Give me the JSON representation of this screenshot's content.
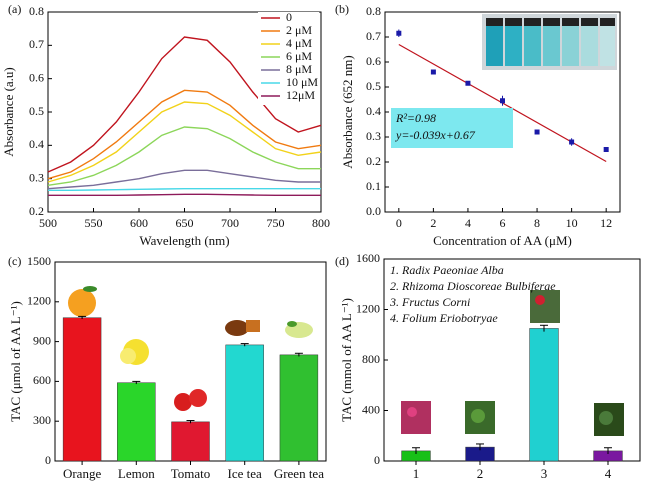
{
  "chart_data": [
    {
      "type": "line",
      "panel_label": "(a)",
      "x_label": "Wavelength (nm)",
      "y_label": "Absorbance (a.u)",
      "x": [
        500,
        525,
        550,
        575,
        600,
        625,
        650,
        675,
        700,
        725,
        750,
        775,
        800
      ],
      "series": [
        {
          "name": "0",
          "color": "#c0141e",
          "values": [
            0.32,
            0.35,
            0.4,
            0.47,
            0.56,
            0.66,
            0.725,
            0.715,
            0.65,
            0.56,
            0.48,
            0.44,
            0.46
          ]
        },
        {
          "name": "2 μM",
          "color": "#f07a10",
          "values": [
            0.3,
            0.32,
            0.36,
            0.41,
            0.47,
            0.53,
            0.565,
            0.56,
            0.52,
            0.46,
            0.41,
            0.39,
            0.4
          ]
        },
        {
          "name": "4 μM",
          "color": "#f2d21a",
          "values": [
            0.29,
            0.31,
            0.34,
            0.38,
            0.44,
            0.5,
            0.53,
            0.525,
            0.49,
            0.44,
            0.39,
            0.37,
            0.38
          ]
        },
        {
          "name": "6 μM",
          "color": "#8cd65a",
          "values": [
            0.28,
            0.29,
            0.31,
            0.34,
            0.38,
            0.43,
            0.455,
            0.45,
            0.42,
            0.38,
            0.35,
            0.33,
            0.33
          ]
        },
        {
          "name": "8 μM",
          "color": "#7a6e9a",
          "values": [
            0.27,
            0.275,
            0.28,
            0.29,
            0.3,
            0.315,
            0.325,
            0.325,
            0.315,
            0.305,
            0.295,
            0.29,
            0.29
          ]
        },
        {
          "name": "10 μM",
          "color": "#48d8e8",
          "values": [
            0.265,
            0.265,
            0.266,
            0.267,
            0.268,
            0.269,
            0.27,
            0.27,
            0.27,
            0.27,
            0.27,
            0.27,
            0.27
          ]
        },
        {
          "name": "12μM",
          "color": "#8e1a5a",
          "values": [
            0.25,
            0.25,
            0.25,
            0.25,
            0.251,
            0.252,
            0.253,
            0.253,
            0.252,
            0.251,
            0.25,
            0.25,
            0.25
          ]
        }
      ],
      "xlim": [
        500,
        800
      ],
      "xticks": [
        500,
        550,
        600,
        650,
        700,
        750,
        800
      ],
      "ylim": [
        0.2,
        0.8
      ],
      "yticks": [
        0.2,
        0.3,
        0.4,
        0.5,
        0.6,
        0.7,
        0.8
      ],
      "legend": "upper right"
    },
    {
      "type": "scatter",
      "panel_label": "(b)",
      "x_label": "Concentration of AA (μM)",
      "y_label": "Absorbance (652 nm)",
      "x": [
        0,
        2,
        4,
        6,
        8,
        10,
        12
      ],
      "values": [
        0.715,
        0.56,
        0.515,
        0.445,
        0.32,
        0.28,
        0.25
      ],
      "errors": [
        0.015,
        0.005,
        0.005,
        0.02,
        0.005,
        0.015,
        0.005
      ],
      "color": "#1a1aa8",
      "fit": {
        "slope": -0.039,
        "intercept": 0.67,
        "x": [
          0,
          12
        ],
        "color": "#c0141e"
      },
      "annotations": [
        "R²=0.98",
        "y=-0.039x+0.67"
      ],
      "xlim": [
        -0.8,
        12.8
      ],
      "xticks": [
        0,
        2,
        4,
        6,
        8,
        10,
        12
      ],
      "ylim": [
        0,
        0.8
      ],
      "yticks": [
        {
          "value": 0,
          "label": "0.0"
        },
        0.1,
        0.2,
        0.3,
        0.4,
        0.5,
        0.6,
        0.7,
        0.8
      ]
    },
    {
      "type": "bar",
      "panel_label": "(c)",
      "y_label": "TAC (μmol of AA L⁻¹)",
      "categories": [
        "Orange",
        "Lemon",
        "Tomato",
        "Ice tea",
        "Green tea"
      ],
      "values": [
        1080,
        590,
        295,
        875,
        800
      ],
      "errors": [
        10,
        10,
        10,
        10,
        12
      ],
      "colors": [
        "#e8141e",
        "#2ad62a",
        "#e01830",
        "#22d8d0",
        "#30c030"
      ],
      "ylim": [
        0,
        1500
      ],
      "yticks": [
        0,
        300,
        600,
        900,
        1200,
        1500
      ]
    },
    {
      "type": "bar",
      "panel_label": "(d)",
      "y_label": "TAC (mmol of AA L⁻¹)",
      "categories": [
        "1",
        "2",
        "3",
        "4"
      ],
      "values": [
        80,
        110,
        1050,
        80
      ],
      "errors": [
        25,
        25,
        25,
        25
      ],
      "colors": [
        "#18c018",
        "#1a1a8a",
        "#20d0d0",
        "#7a18a0"
      ],
      "annotations": [
        "1. Radix Paeoniae Alba",
        "2. Rhizoma Dioscoreae Bulbiferae",
        "3. Fructus Corni",
        "4. Folium Eriobotryae"
      ],
      "ylim": [
        0,
        1600
      ],
      "yticks": [
        0,
        400,
        800,
        1200,
        1600
      ]
    }
  ]
}
